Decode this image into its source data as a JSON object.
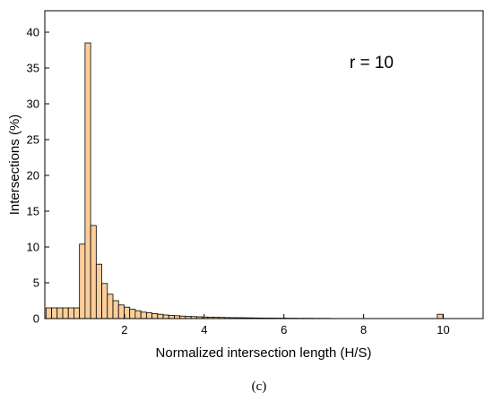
{
  "chart_data": {
    "type": "bar",
    "xlabel": "Normalized intersection length (H/S)",
    "ylabel": "Intersections (%)",
    "xlim": [
      0,
      11
    ],
    "ylim": [
      0,
      43
    ],
    "xticks": [
      2,
      4,
      6,
      8,
      10
    ],
    "yticks": [
      0,
      5,
      10,
      15,
      20,
      25,
      30,
      35,
      40
    ],
    "annotation": "r = 10",
    "caption": "(c)",
    "bar_width": 0.14,
    "bar_fill": "#fccf9a",
    "bar_stroke": "#000000",
    "grid": false,
    "x": [
      0.1,
      0.24,
      0.38,
      0.52,
      0.66,
      0.8,
      0.94,
      1.08,
      1.22,
      1.36,
      1.5,
      1.64,
      1.78,
      1.92,
      2.06,
      2.2,
      2.34,
      2.48,
      2.62,
      2.76,
      2.9,
      3.04,
      3.18,
      3.32,
      3.46,
      3.6,
      3.74,
      3.88,
      4.02,
      4.16,
      4.3,
      4.44,
      4.58,
      4.72,
      4.86,
      5.0,
      5.14,
      5.28,
      5.42,
      5.56,
      5.7,
      5.84,
      5.98,
      6.12,
      6.26,
      6.4,
      6.54,
      6.68,
      6.82,
      6.96,
      7.1,
      9.92
    ],
    "values": [
      1.5,
      1.5,
      1.5,
      1.5,
      1.5,
      1.5,
      10.4,
      38.5,
      13.0,
      7.6,
      4.9,
      3.4,
      2.5,
      1.9,
      1.6,
      1.3,
      1.1,
      0.9,
      0.8,
      0.7,
      0.6,
      0.5,
      0.45,
      0.4,
      0.35,
      0.3,
      0.28,
      0.25,
      0.22,
      0.2,
      0.18,
      0.16,
      0.14,
      0.13,
      0.12,
      0.11,
      0.1,
      0.09,
      0.08,
      0.07,
      0.07,
      0.06,
      0.06,
      0.05,
      0.05,
      0.04,
      0.04,
      0.04,
      0.03,
      0.03,
      0.03,
      0.6
    ]
  }
}
